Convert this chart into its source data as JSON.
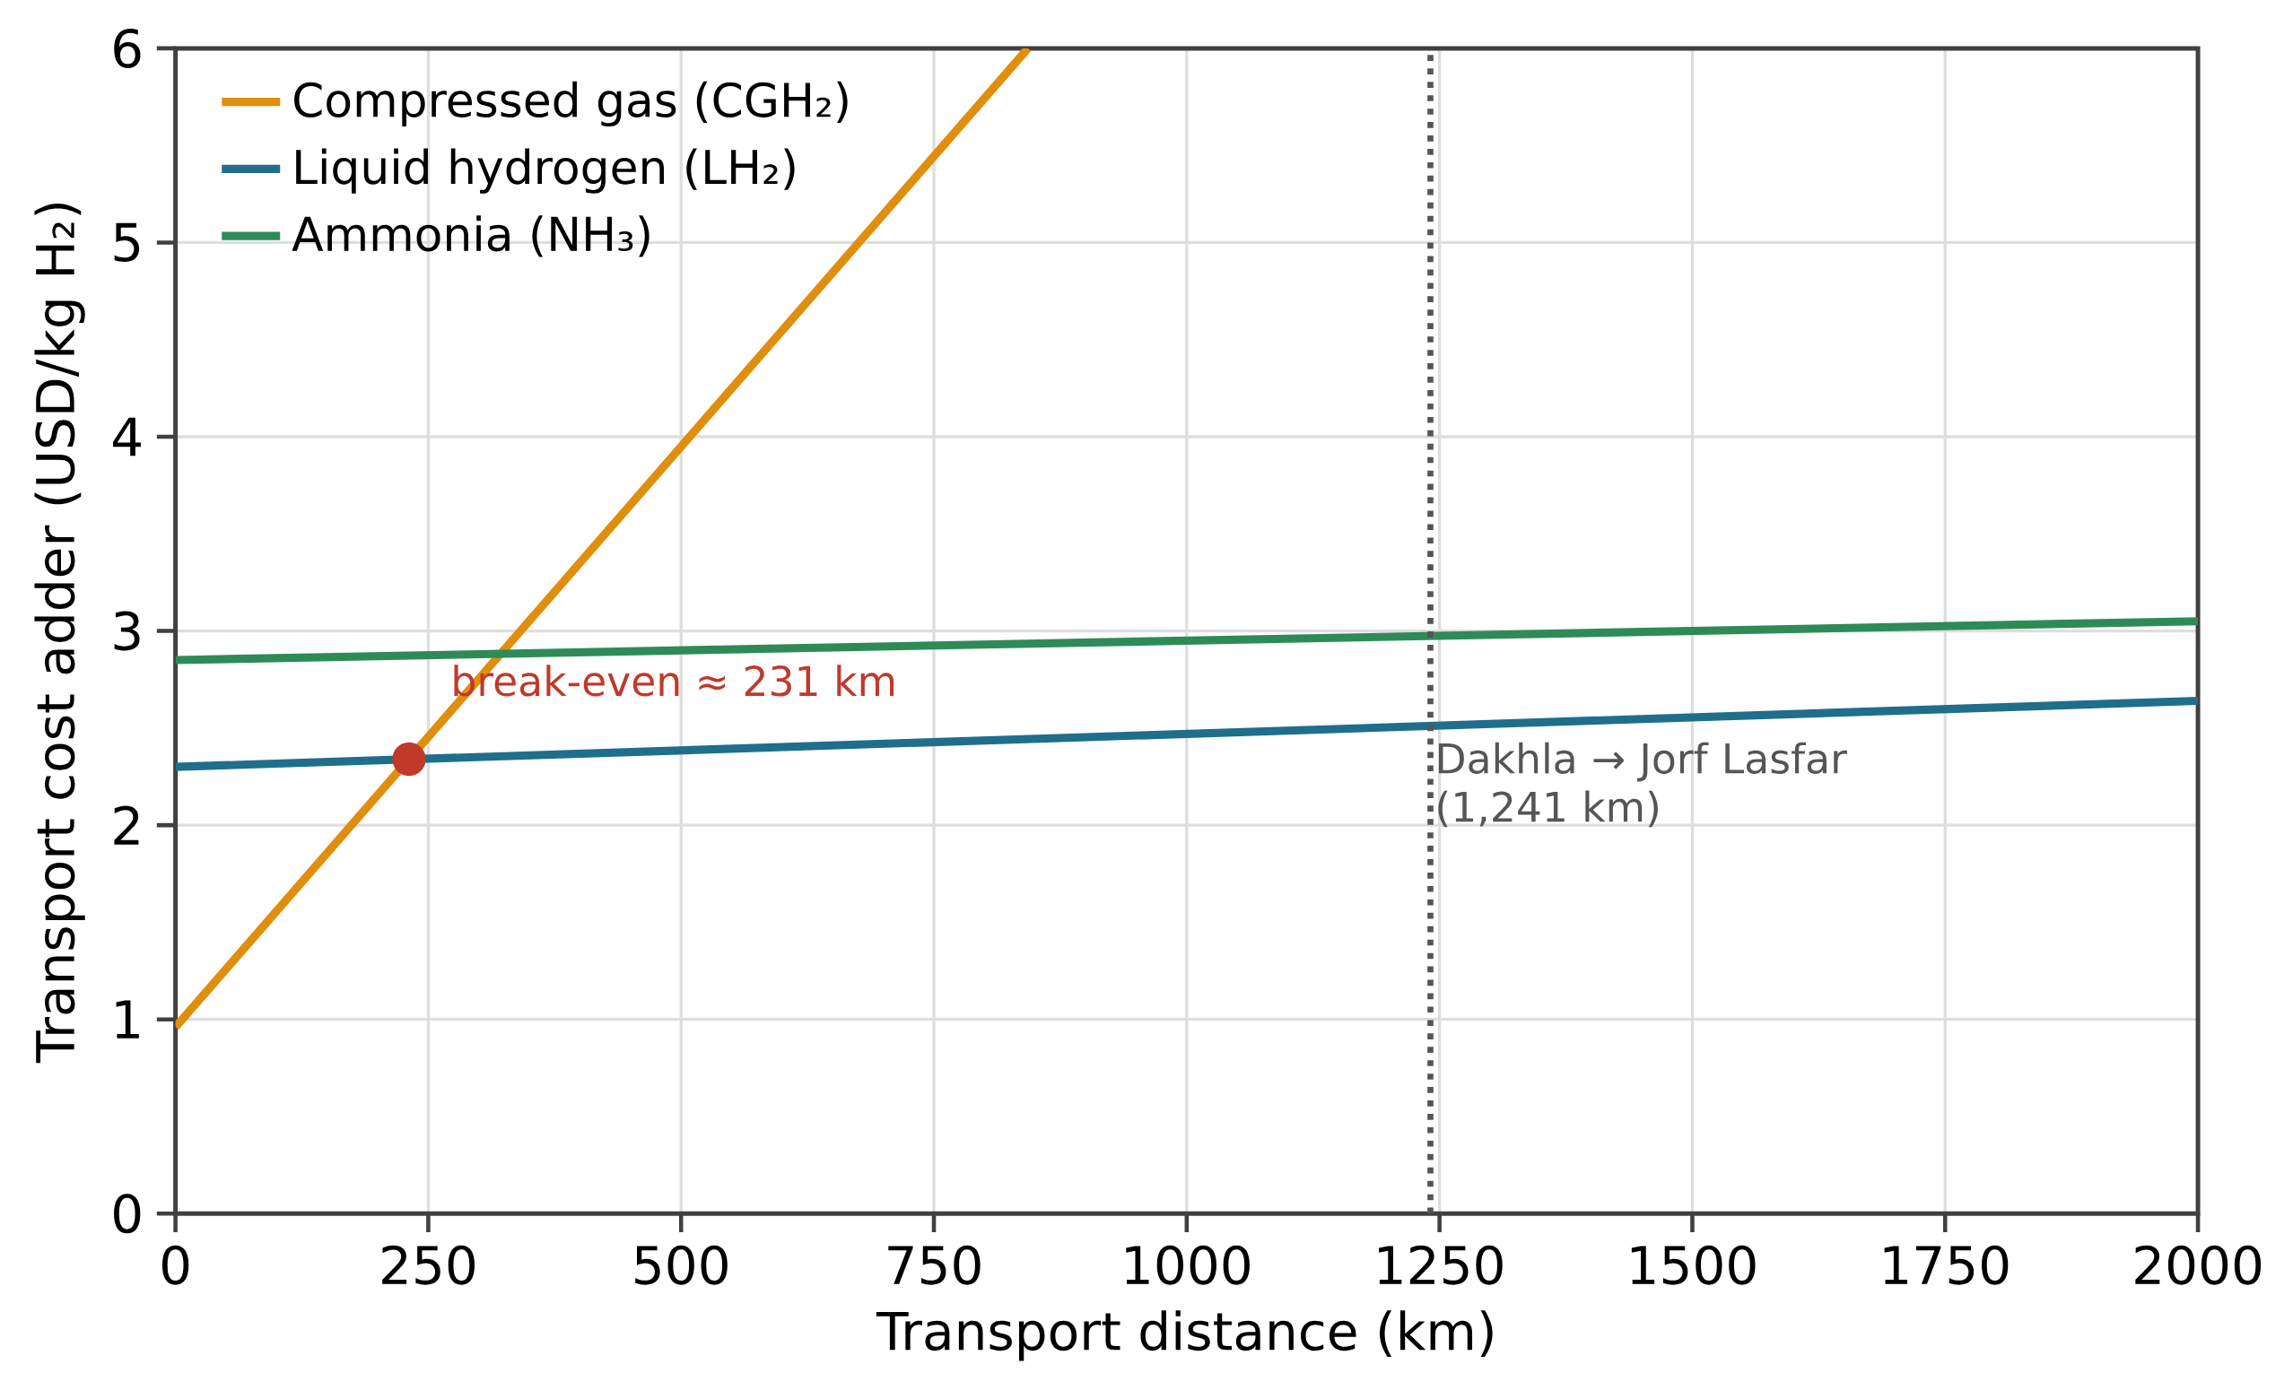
{
  "chart_data": {
    "type": "line",
    "xlabel": "Transport distance (km)",
    "ylabel": "Transport cost adder (USD/kg H₂)",
    "xlim": [
      0,
      2000
    ],
    "ylim": [
      0,
      6
    ],
    "xticks": [
      0,
      250,
      500,
      750,
      1000,
      1250,
      1500,
      1750,
      2000
    ],
    "yticks": [
      0,
      1,
      2,
      3,
      4,
      5,
      6
    ],
    "grid": true,
    "legend": "top left",
    "marker": "none",
    "line_style": "solid",
    "series": [
      {
        "name": "Compressed gas (CGH₂)",
        "color": "#e08e0b",
        "x": [
          0,
          843
        ],
        "values": [
          0.96,
          6
        ]
      },
      {
        "name": "Liquid hydrogen (LH₂)",
        "color": "#1f6e8c",
        "x": [
          0,
          2000
        ],
        "values": [
          2.3,
          2.64
        ]
      },
      {
        "name": "Ammonia (NH₃)",
        "color": "#2e8b57",
        "x": [
          0,
          2000
        ],
        "values": [
          2.85,
          3.05
        ]
      },
      {
        "type": "scatter",
        "marker": "circle",
        "color": "#c0392b",
        "x": [
          231
        ],
        "values": [
          2.34
        ]
      }
    ],
    "ref_lines": [
      {
        "axis": "x",
        "value": 1241,
        "label": "Dakhla → Jorf Lasfar (1,241 km)",
        "color": "#555555",
        "line_style": "dotted"
      }
    ],
    "annotations": [
      {
        "text": "break-even ≈ 231 km",
        "x": 231,
        "y": 2.34
      }
    ]
  }
}
